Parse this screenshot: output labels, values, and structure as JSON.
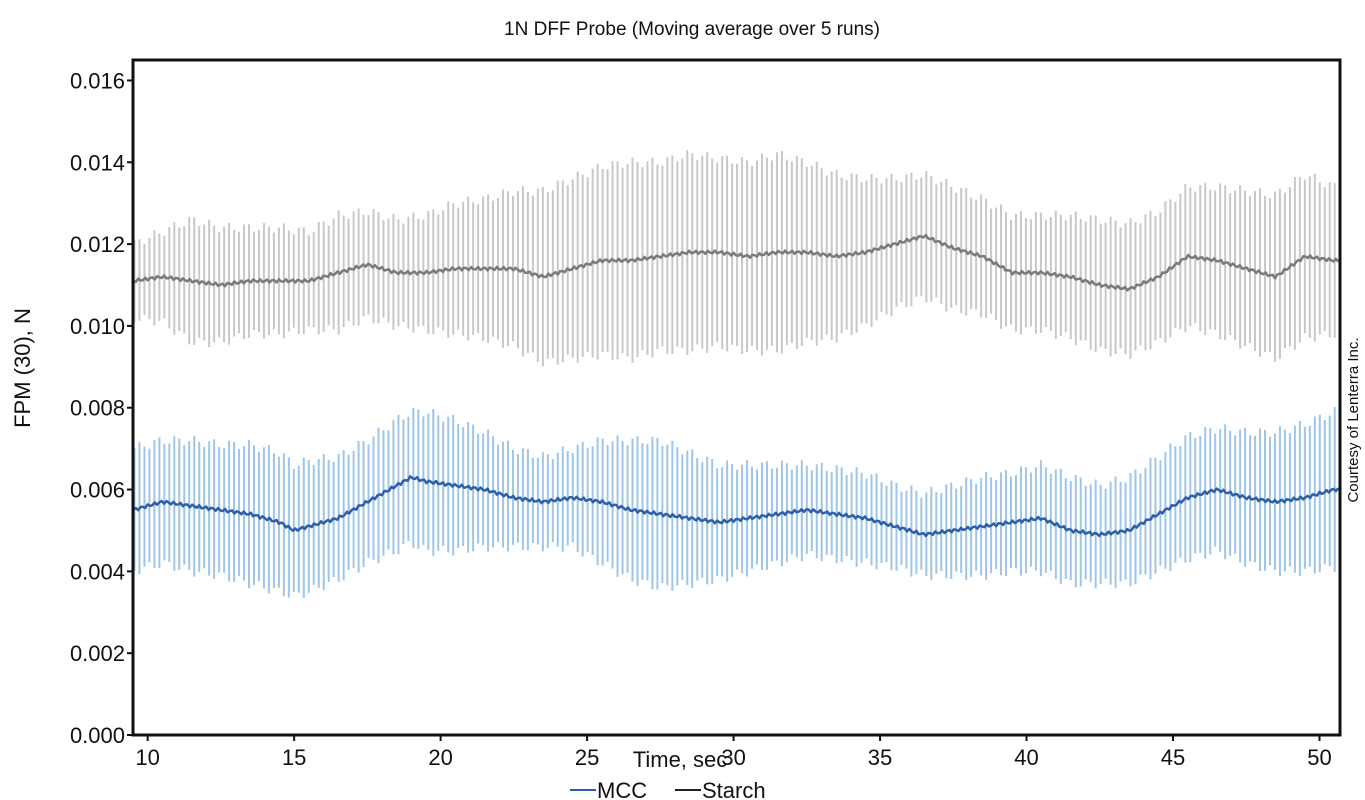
{
  "chart_data": {
    "type": "line",
    "title": "1N DFF Probe (Moving average over 5 runs)",
    "xlabel": "Time, sec",
    "ylabel": "FPM (30), N",
    "xlim": [
      9.5,
      50.7
    ],
    "ylim": [
      0,
      0.0165
    ],
    "x_ticks": [
      "10",
      "15",
      "20",
      "25",
      "30",
      "35",
      "40",
      "45",
      "50"
    ],
    "y_ticks": [
      "0.000",
      "0.002",
      "0.004",
      "0.006",
      "0.008",
      "0.010",
      "0.012",
      "0.014",
      "0.016"
    ],
    "legend_position": "bottom-center",
    "grid": false,
    "error_bars": true,
    "series": [
      {
        "name": "MCC",
        "line_color": "#2f5fa8",
        "band_color": "#9fc6e8",
        "x": [
          9.5,
          10.5,
          11.5,
          12.5,
          13.5,
          14.5,
          15,
          15.5,
          16.5,
          17.5,
          18.5,
          19,
          19.5,
          20.5,
          21.5,
          22.5,
          23.5,
          24.5,
          25.5,
          26.5,
          27.5,
          28.5,
          29.5,
          30.5,
          31.5,
          32.5,
          33.5,
          34.5,
          35.5,
          36.5,
          37.5,
          38.5,
          39.5,
          40.5,
          41.5,
          42.5,
          43.5,
          44.5,
          45.5,
          46.5,
          47.5,
          48.5,
          49.5,
          50.5
        ],
        "values": [
          0.0055,
          0.0057,
          0.0056,
          0.0055,
          0.0054,
          0.0052,
          0.005,
          0.0051,
          0.0053,
          0.0057,
          0.0061,
          0.0063,
          0.0062,
          0.0061,
          0.006,
          0.0058,
          0.0057,
          0.0058,
          0.0057,
          0.0055,
          0.0054,
          0.0053,
          0.0052,
          0.0053,
          0.0054,
          0.0055,
          0.0054,
          0.0053,
          0.0051,
          0.0049,
          0.005,
          0.0051,
          0.0052,
          0.0053,
          0.005,
          0.0049,
          0.005,
          0.0054,
          0.0058,
          0.006,
          0.0058,
          0.0057,
          0.0058,
          0.006
        ],
        "errors": [
          0.0015,
          0.0015,
          0.0016,
          0.0016,
          0.0017,
          0.0017,
          0.0016,
          0.0016,
          0.0015,
          0.0015,
          0.0016,
          0.0016,
          0.0017,
          0.0016,
          0.0014,
          0.0012,
          0.0011,
          0.0012,
          0.0015,
          0.0017,
          0.0018,
          0.0016,
          0.0014,
          0.0013,
          0.0012,
          0.0011,
          0.0011,
          0.0011,
          0.001,
          0.001,
          0.0011,
          0.0012,
          0.0012,
          0.0013,
          0.0013,
          0.0012,
          0.0013,
          0.0014,
          0.0015,
          0.0015,
          0.0016,
          0.0017,
          0.0018,
          0.0019
        ]
      },
      {
        "name": "Starch",
        "line_color": "#7a7a7a",
        "band_color": "#c8c8c8",
        "x": [
          9.5,
          10.5,
          11.5,
          12.5,
          13.5,
          14.5,
          15.5,
          16.5,
          17.5,
          18.5,
          19.5,
          20.5,
          21.5,
          22.5,
          23.5,
          24.5,
          25.5,
          26.5,
          27.5,
          28.5,
          29.5,
          30.5,
          31.5,
          32.5,
          33.5,
          34.5,
          35.5,
          36.5,
          37.5,
          38.5,
          39.5,
          40.5,
          41.5,
          42.5,
          43.5,
          44.5,
          45.5,
          46.5,
          47.5,
          48.5,
          49.5,
          50.5
        ],
        "values": [
          0.0111,
          0.0112,
          0.0111,
          0.011,
          0.0111,
          0.0111,
          0.0111,
          0.0113,
          0.0115,
          0.0113,
          0.0113,
          0.0114,
          0.0114,
          0.0114,
          0.0112,
          0.0114,
          0.0116,
          0.0116,
          0.0117,
          0.0118,
          0.0118,
          0.0117,
          0.0118,
          0.0118,
          0.0117,
          0.0118,
          0.012,
          0.0122,
          0.0119,
          0.0117,
          0.0113,
          0.0113,
          0.0112,
          0.011,
          0.0109,
          0.0112,
          0.0117,
          0.0116,
          0.0114,
          0.0112,
          0.0117,
          0.0116
        ],
        "errors": [
          0.0009,
          0.0011,
          0.0015,
          0.0014,
          0.0013,
          0.0013,
          0.0012,
          0.0014,
          0.0013,
          0.0013,
          0.0014,
          0.0016,
          0.0017,
          0.0019,
          0.0021,
          0.0022,
          0.0023,
          0.0024,
          0.0023,
          0.0024,
          0.0023,
          0.0023,
          0.0024,
          0.0022,
          0.002,
          0.0018,
          0.0016,
          0.0015,
          0.0015,
          0.0014,
          0.0014,
          0.0014,
          0.0015,
          0.0016,
          0.0016,
          0.0016,
          0.0017,
          0.0018,
          0.0019,
          0.002,
          0.002,
          0.0018
        ]
      }
    ]
  },
  "credit": "Courtesy of Lenterra Inc."
}
